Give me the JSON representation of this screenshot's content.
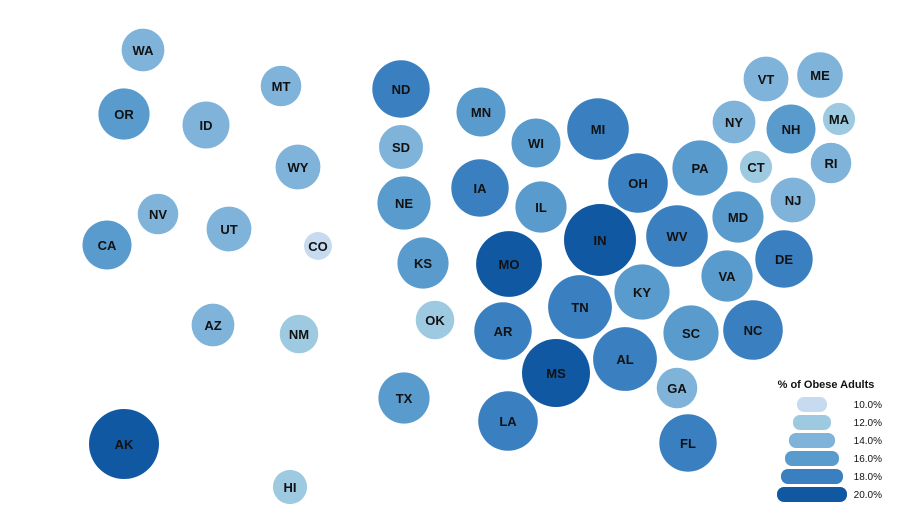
{
  "chart_data": {
    "type": "bubble-map",
    "legend": {
      "title": "% of Obese Adults",
      "placement": "bottom-right",
      "levels": [
        {
          "label": "10.0%",
          "value": 10.0,
          "color": "#c6dbef"
        },
        {
          "label": "12.0%",
          "value": 12.0,
          "color": "#9ecae1"
        },
        {
          "label": "14.0%",
          "value": 14.0,
          "color": "#7fb3da"
        },
        {
          "label": "16.0%",
          "value": 16.0,
          "color": "#5a9bcd"
        },
        {
          "label": "18.0%",
          "value": 18.0,
          "color": "#3a80c0"
        },
        {
          "label": "20.0%",
          "value": 20.0,
          "color": "#1158a3"
        }
      ]
    },
    "states": [
      {
        "abbr": "WA",
        "value": 13.5
      },
      {
        "abbr": "OR",
        "value": 15.5
      },
      {
        "abbr": "ID",
        "value": 14.5
      },
      {
        "abbr": "MT",
        "value": 13.0
      },
      {
        "abbr": "WY",
        "value": 14.0
      },
      {
        "abbr": "ND",
        "value": 17.0
      },
      {
        "abbr": "MN",
        "value": 15.0
      },
      {
        "abbr": "SD",
        "value": 13.8
      },
      {
        "abbr": "WI",
        "value": 15.0
      },
      {
        "abbr": "MI",
        "value": 18.0
      },
      {
        "abbr": "VT",
        "value": 14.0
      },
      {
        "abbr": "ME",
        "value": 14.2
      },
      {
        "abbr": "NY",
        "value": 13.5
      },
      {
        "abbr": "NH",
        "value": 15.0
      },
      {
        "abbr": "MA",
        "value": 11.0
      },
      {
        "abbr": "IA",
        "value": 17.0
      },
      {
        "abbr": "NE",
        "value": 16.0
      },
      {
        "abbr": "IL",
        "value": 15.5
      },
      {
        "abbr": "OH",
        "value": 17.5
      },
      {
        "abbr": "PA",
        "value": 16.5
      },
      {
        "abbr": "CT",
        "value": 11.0
      },
      {
        "abbr": "RI",
        "value": 13.0
      },
      {
        "abbr": "NV",
        "value": 13.0
      },
      {
        "abbr": "UT",
        "value": 14.0
      },
      {
        "abbr": "CO",
        "value": 10.0
      },
      {
        "abbr": "CA",
        "value": 15.0
      },
      {
        "abbr": "KS",
        "value": 15.5
      },
      {
        "abbr": "MO",
        "value": 19.0
      },
      {
        "abbr": "IN",
        "value": 20.5
      },
      {
        "abbr": "WV",
        "value": 18.0
      },
      {
        "abbr": "MD",
        "value": 15.5
      },
      {
        "abbr": "NJ",
        "value": 14.0
      },
      {
        "abbr": "DE",
        "value": 17.0
      },
      {
        "abbr": "VA",
        "value": 15.5
      },
      {
        "abbr": "KY",
        "value": 16.5
      },
      {
        "abbr": "OK",
        "value": 12.5
      },
      {
        "abbr": "TN",
        "value": 18.5
      },
      {
        "abbr": "AR",
        "value": 17.0
      },
      {
        "abbr": "SC",
        "value": 16.5
      },
      {
        "abbr": "NC",
        "value": 17.5
      },
      {
        "abbr": "AZ",
        "value": 13.5
      },
      {
        "abbr": "NM",
        "value": 12.5
      },
      {
        "abbr": "AL",
        "value": 18.5
      },
      {
        "abbr": "MS",
        "value": 19.5
      },
      {
        "abbr": "GA",
        "value": 13.0
      },
      {
        "abbr": "TX",
        "value": 15.5
      },
      {
        "abbr": "LA",
        "value": 17.5
      },
      {
        "abbr": "FL",
        "value": 17.0
      },
      {
        "abbr": "AK",
        "value": 20.0
      },
      {
        "abbr": "HI",
        "value": 11.5
      }
    ]
  }
}
